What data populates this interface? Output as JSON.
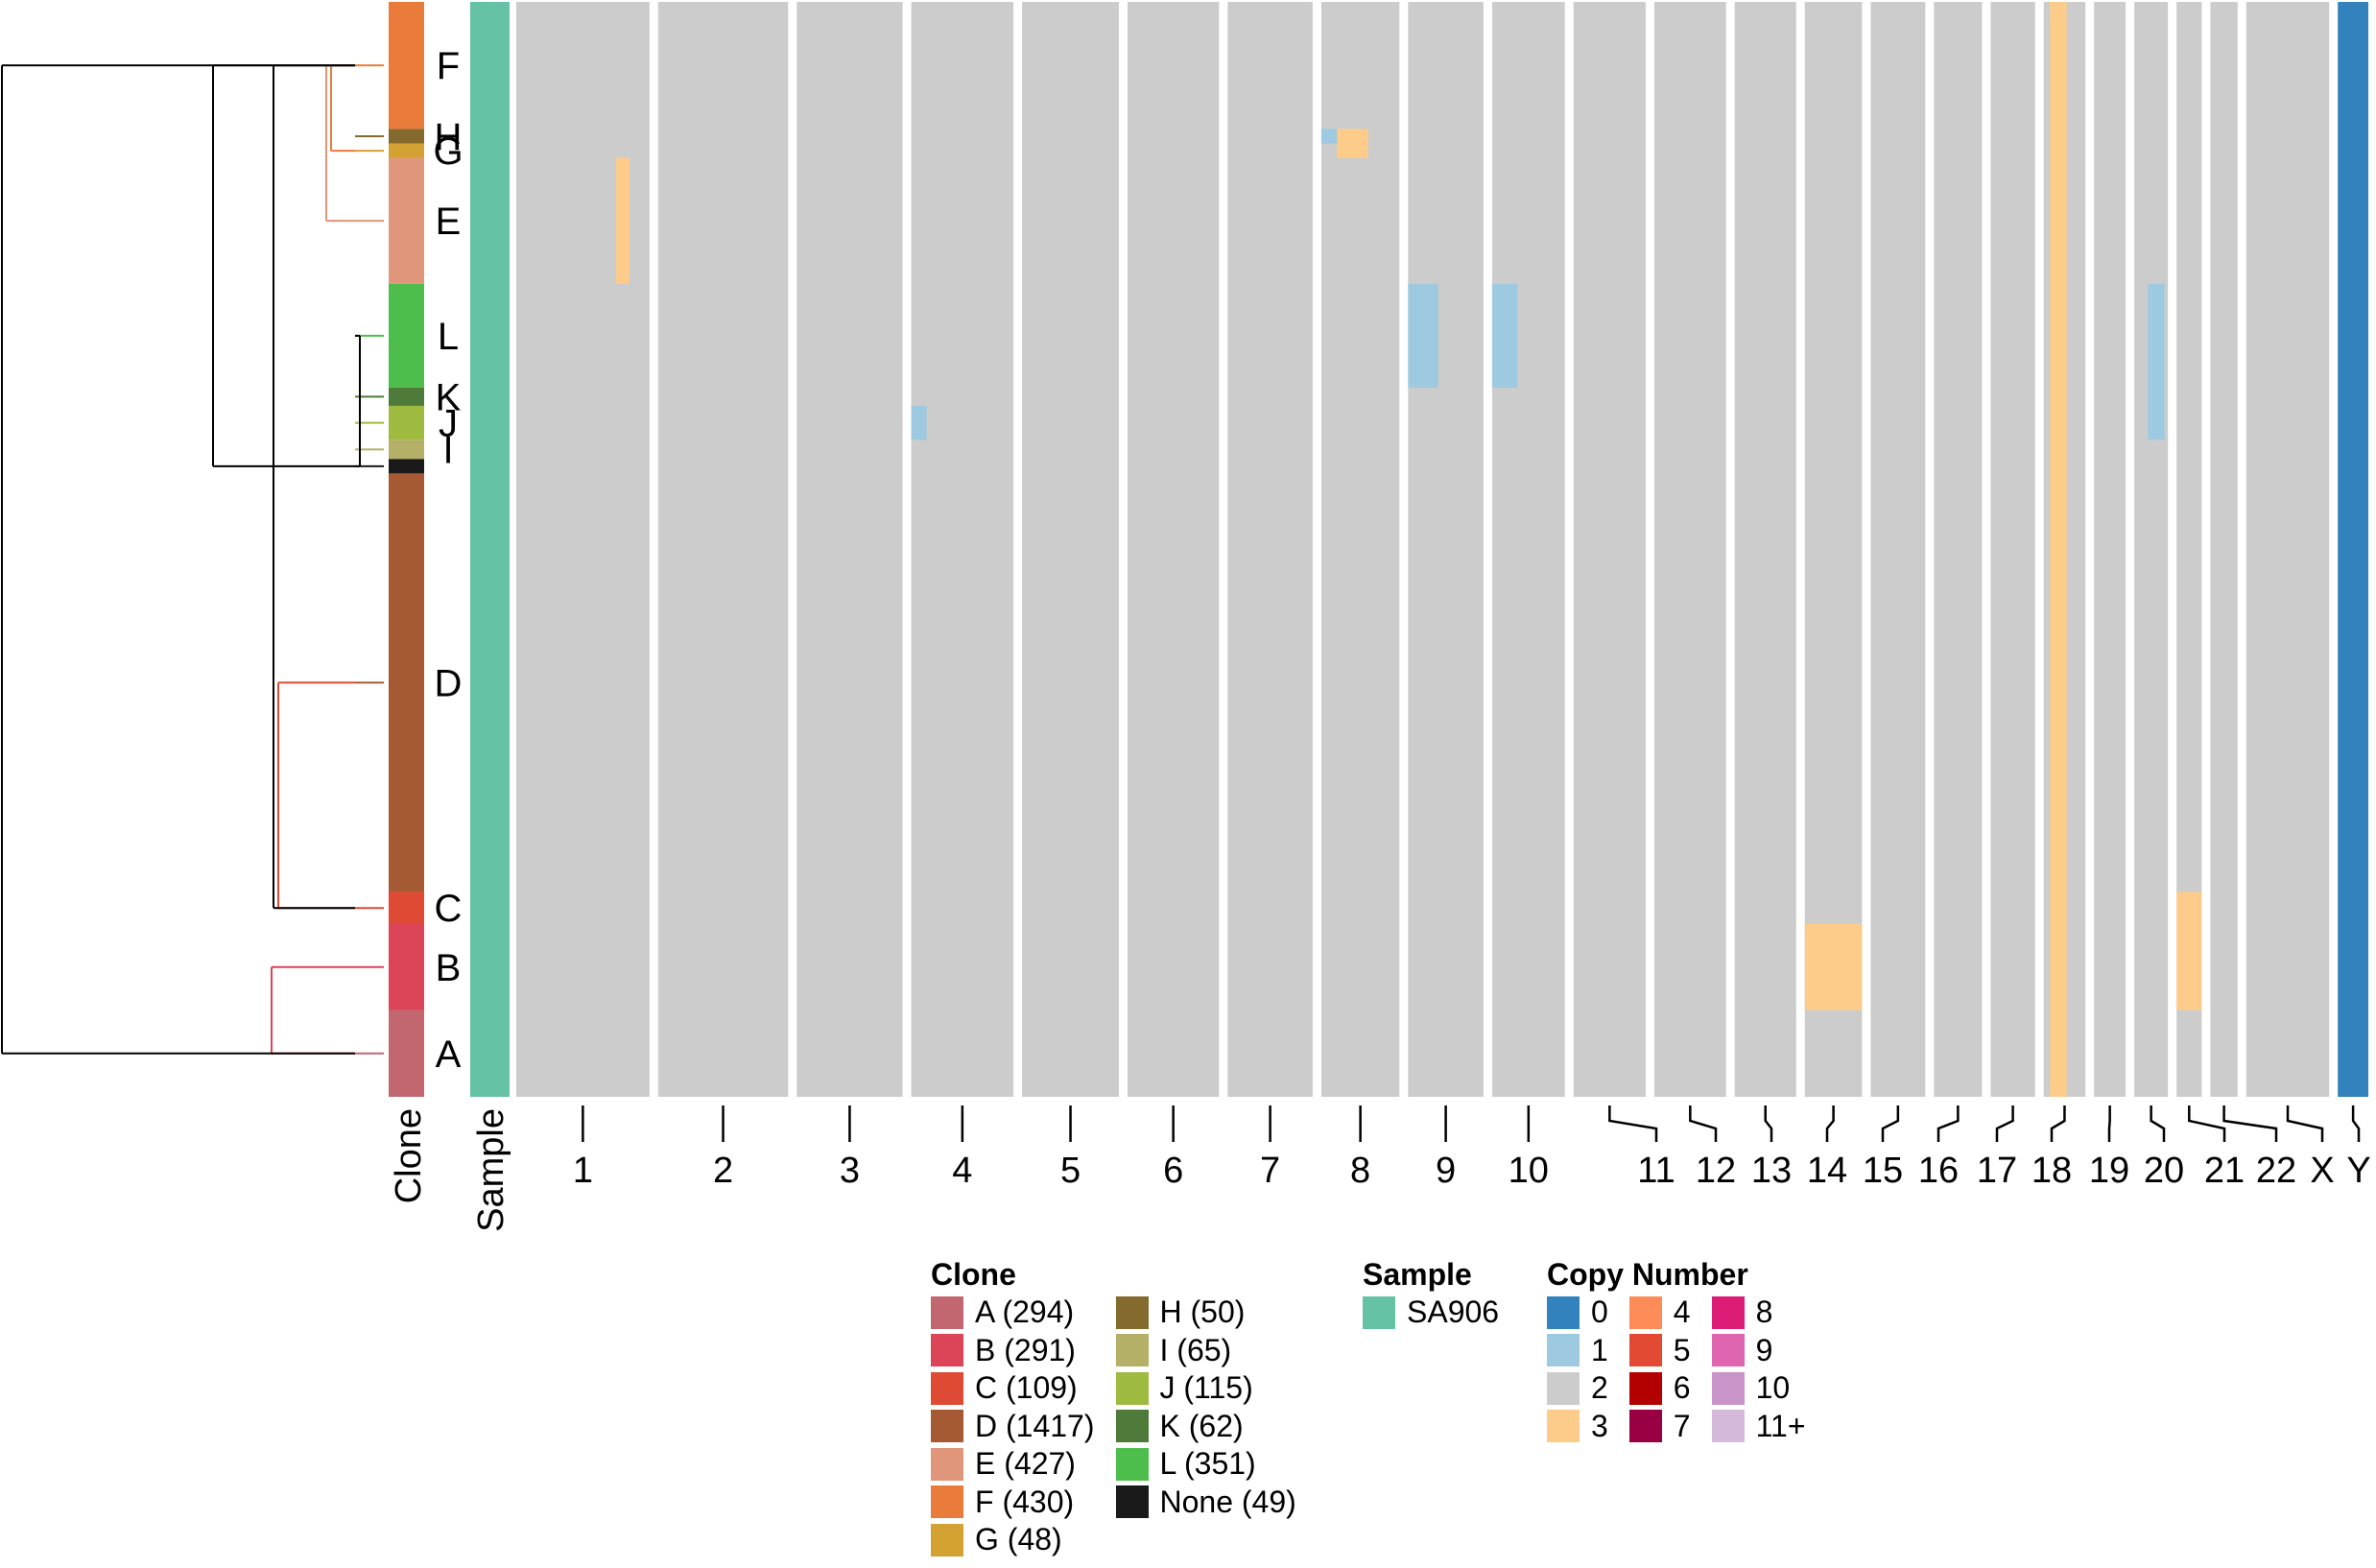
{
  "chart_data": {
    "type": "heatmap",
    "title": "",
    "row_annotations": {
      "clone_axis_label": "Clone",
      "sample_axis_label": "Sample"
    },
    "clones": [
      {
        "id": "F",
        "count": 430
      },
      {
        "id": "H",
        "count": 50
      },
      {
        "id": "G",
        "count": 48
      },
      {
        "id": "E",
        "count": 427
      },
      {
        "id": "L",
        "count": 351
      },
      {
        "id": "K",
        "count": 62
      },
      {
        "id": "J",
        "count": 115
      },
      {
        "id": "I",
        "count": 65
      },
      {
        "id": "None",
        "count": 49
      },
      {
        "id": "D",
        "count": 1417
      },
      {
        "id": "C",
        "count": 109
      },
      {
        "id": "B",
        "count": 291
      },
      {
        "id": "A",
        "count": 294
      }
    ],
    "clone_order_label_text": [
      "F",
      "H",
      "G",
      "E",
      "L",
      "K",
      "J",
      "I",
      "D",
      "C",
      "B",
      "A"
    ],
    "chromosomes": [
      {
        "name": "1",
        "rel_len": 249
      },
      {
        "name": "2",
        "rel_len": 243
      },
      {
        "name": "3",
        "rel_len": 198
      },
      {
        "name": "4",
        "rel_len": 191
      },
      {
        "name": "5",
        "rel_len": 181
      },
      {
        "name": "6",
        "rel_len": 171
      },
      {
        "name": "7",
        "rel_len": 159
      },
      {
        "name": "8",
        "rel_len": 146
      },
      {
        "name": "9",
        "rel_len": 141
      },
      {
        "name": "10",
        "rel_len": 136
      },
      {
        "name": "11",
        "rel_len": 135
      },
      {
        "name": "12",
        "rel_len": 134
      },
      {
        "name": "13",
        "rel_len": 115
      },
      {
        "name": "14",
        "rel_len": 107
      },
      {
        "name": "15",
        "rel_len": 102
      },
      {
        "name": "16",
        "rel_len": 90
      },
      {
        "name": "17",
        "rel_len": 83
      },
      {
        "name": "18",
        "rel_len": 78
      },
      {
        "name": "19",
        "rel_len": 59
      },
      {
        "name": "20",
        "rel_len": 63
      },
      {
        "name": "21",
        "rel_len": 47
      },
      {
        "name": "22",
        "rel_len": 51
      },
      {
        "name": "X",
        "rel_len": 155
      },
      {
        "name": "Y",
        "rel_len": 57
      }
    ],
    "baseline_copy_number": 2,
    "notable_events": [
      {
        "chrom": "1",
        "clones": [
          "E"
        ],
        "copy_number": 3,
        "chrom_segment": [
          0.75,
          0.85
        ]
      },
      {
        "chrom": "4",
        "clones": [
          "J"
        ],
        "copy_number": 1,
        "chrom_segment": [
          0.0,
          0.15
        ]
      },
      {
        "chrom": "8",
        "clones": [
          "H",
          "G"
        ],
        "copy_number": 3,
        "chrom_segment": [
          0.2,
          0.6
        ]
      },
      {
        "chrom": "8",
        "clones": [
          "H"
        ],
        "copy_number": 1,
        "chrom_segment": [
          0.0,
          0.2
        ]
      },
      {
        "chrom": "9",
        "clones": [
          "L"
        ],
        "copy_number": 1,
        "chrom_segment": [
          0.0,
          0.4
        ]
      },
      {
        "chrom": "10",
        "clones": [
          "L"
        ],
        "copy_number": 1,
        "chrom_segment": [
          0.0,
          0.35
        ]
      },
      {
        "chrom": "14",
        "clones": [
          "B"
        ],
        "copy_number": 3,
        "chrom_segment": [
          0.0,
          1.0
        ]
      },
      {
        "chrom": "18",
        "clones": [
          "all"
        ],
        "copy_number": 3,
        "chrom_segment": [
          0.15,
          0.55
        ]
      },
      {
        "chrom": "20",
        "clones": [
          "L",
          "K",
          "J"
        ],
        "copy_number": 1,
        "chrom_segment": [
          0.4,
          0.9
        ]
      },
      {
        "chrom": "21",
        "clones": [
          "B",
          "C"
        ],
        "copy_number": 3,
        "chrom_segment": [
          0.0,
          1.0
        ]
      },
      {
        "chrom": "Y",
        "clones": [
          "all"
        ],
        "copy_number": 0,
        "chrom_segment": [
          0.0,
          1.0
        ]
      }
    ],
    "legend": {
      "clone_title": "Clone",
      "sample_title": "Sample",
      "copy_number_title": "Copy Number",
      "clone_items": [
        {
          "label": "A (294)",
          "color": "#c2676f"
        },
        {
          "label": "B (291)",
          "color": "#dc4458"
        },
        {
          "label": "C (109)",
          "color": "#de4a34"
        },
        {
          "label": "D (1417)",
          "color": "#a65a33"
        },
        {
          "label": "E (427)",
          "color": "#e0967a"
        },
        {
          "label": "F (430)",
          "color": "#e97c3a"
        },
        {
          "label": "G (48)",
          "color": "#d4a133"
        },
        {
          "label": "H (50)",
          "color": "#846a2c"
        },
        {
          "label": "I (65)",
          "color": "#b5b067"
        },
        {
          "label": "J (115)",
          "color": "#9ebb3f"
        },
        {
          "label": "K (62)",
          "color": "#4e7b39"
        },
        {
          "label": "L (351)",
          "color": "#4dbe4b"
        },
        {
          "label": "None (49)",
          "color": "#1a1a1a"
        }
      ],
      "sample_items": [
        {
          "label": "SA906",
          "color": "#66c2a5"
        }
      ],
      "copy_number_items": [
        {
          "label": "0",
          "color": "#3182bd"
        },
        {
          "label": "1",
          "color": "#9ecae1"
        },
        {
          "label": "2",
          "color": "#cccccc"
        },
        {
          "label": "3",
          "color": "#fdcc8a"
        },
        {
          "label": "4",
          "color": "#fc8d59"
        },
        {
          "label": "5",
          "color": "#e34a33"
        },
        {
          "label": "6",
          "color": "#b30000"
        },
        {
          "label": "7",
          "color": "#980043"
        },
        {
          "label": "8",
          "color": "#dd1c77"
        },
        {
          "label": "9",
          "color": "#df65b0"
        },
        {
          "label": "10",
          "color": "#c994c7"
        },
        {
          "label": "11+",
          "color": "#d4b9da"
        }
      ]
    }
  }
}
